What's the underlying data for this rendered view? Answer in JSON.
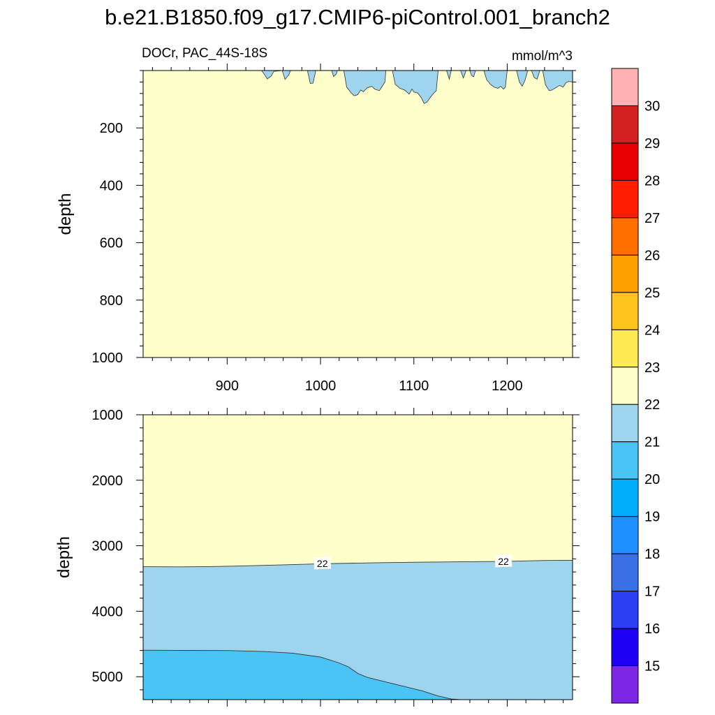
{
  "title": "b.e21.B1850.f09_g17.CMIP6-piControl.001_branch2",
  "subtitle_left": "DOCr, PAC_44S-18S",
  "subtitle_right": "mmol/m^3",
  "colors": {
    "below_15": "#7d26e6",
    "15": "#1e00f5",
    "16": "#2a3ff0",
    "17": "#3a6fe8",
    "18": "#1e90ff",
    "19": "#00b0ff",
    "20": "#4ac3f5",
    "21": "#9fd4ee",
    "22": "#ffffcc",
    "23": "#ffe955",
    "24": "#ffc41c",
    "25": "#ff9f00",
    "26": "#ff6f00",
    "27": "#ff1e00",
    "28": "#e60000",
    "29": "#d42020",
    "30": "#ffb0b0",
    "frame": "#000000"
  },
  "chart_data": [
    {
      "type": "contour-section",
      "panel": "upper",
      "ylabel": "depth",
      "xlim": [
        810,
        1270
      ],
      "ylim": [
        1000,
        0
      ],
      "y_reversed": true,
      "x_ticks": [
        900,
        1000,
        1100,
        1200
      ],
      "x_tick_labels": [
        "900",
        "1000",
        "1100",
        "1200"
      ],
      "y_ticks": [
        200,
        400,
        600,
        800,
        1000
      ],
      "y_tick_labels": [
        "200",
        "400",
        "600",
        "800",
        "1000"
      ],
      "background_level": "22-23",
      "regions": [
        {
          "level": "21-22",
          "description": "thin patches near surface",
          "boundary": [
            [
              937,
              0
            ],
            [
              940,
              14
            ],
            [
              943,
              29
            ],
            [
              947,
              20
            ],
            [
              950,
              3
            ],
            [
              959,
              0
            ],
            [
              962,
              31
            ],
            [
              966,
              15
            ],
            [
              968,
              0
            ],
            [
              986,
              0
            ],
            [
              989,
              45
            ],
            [
              992,
              44
            ],
            [
              995,
              0
            ],
            [
              1012,
              0
            ],
            [
              1014,
              21
            ],
            [
              1017,
              12
            ],
            [
              1018,
              0
            ],
            [
              1025,
              0
            ],
            [
              1028,
              58
            ],
            [
              1033,
              78
            ],
            [
              1036,
              88
            ],
            [
              1040,
              84
            ],
            [
              1043,
              68
            ],
            [
              1046,
              74
            ],
            [
              1050,
              60
            ],
            [
              1055,
              55
            ],
            [
              1058,
              65
            ],
            [
              1063,
              70
            ],
            [
              1066,
              55
            ],
            [
              1069,
              40
            ],
            [
              1070,
              0
            ],
            [
              1077,
              0
            ],
            [
              1080,
              48
            ],
            [
              1085,
              62
            ],
            [
              1090,
              68
            ],
            [
              1095,
              82
            ],
            [
              1098,
              65
            ],
            [
              1100,
              75
            ],
            [
              1104,
              78
            ],
            [
              1108,
              95
            ],
            [
              1111,
              115
            ],
            [
              1114,
              110
            ],
            [
              1118,
              92
            ],
            [
              1121,
              80
            ],
            [
              1124,
              70
            ],
            [
              1126,
              0
            ],
            [
              1135,
              0
            ],
            [
              1138,
              30
            ],
            [
              1140,
              0
            ],
            [
              1150,
              0
            ],
            [
              1153,
              26
            ],
            [
              1156,
              0
            ],
            [
              1160,
              0
            ],
            [
              1162,
              18
            ],
            [
              1164,
              22
            ],
            [
              1166,
              0
            ],
            [
              1175,
              0
            ],
            [
              1178,
              32
            ],
            [
              1182,
              48
            ],
            [
              1186,
              58
            ],
            [
              1190,
              62
            ],
            [
              1193,
              55
            ],
            [
              1196,
              65
            ],
            [
              1198,
              58
            ],
            [
              1200,
              0
            ],
            [
              1210,
              0
            ],
            [
              1213,
              40
            ],
            [
              1216,
              55
            ],
            [
              1219,
              35
            ],
            [
              1222,
              0
            ],
            [
              1226,
              0
            ],
            [
              1229,
              25
            ],
            [
              1232,
              30
            ],
            [
              1235,
              0
            ],
            [
              1238,
              0
            ],
            [
              1241,
              50
            ],
            [
              1245,
              70
            ],
            [
              1248,
              68
            ],
            [
              1252,
              60
            ],
            [
              1256,
              52
            ],
            [
              1260,
              58
            ],
            [
              1263,
              42
            ],
            [
              1266,
              38
            ],
            [
              1270,
              40
            ],
            [
              1270,
              0
            ]
          ]
        }
      ]
    },
    {
      "type": "contour-section",
      "panel": "lower",
      "ylabel": "depth",
      "xlim": [
        810,
        1270
      ],
      "ylim": [
        5350,
        1000
      ],
      "y_reversed": true,
      "y_ticks": [
        1000,
        2000,
        3000,
        4000,
        5000
      ],
      "y_tick_labels": [
        "1000",
        "2000",
        "3000",
        "4000",
        "5000"
      ],
      "x_ticks": [
        900,
        1000,
        1100,
        1200
      ],
      "x_tick_labels_shown": false,
      "background_level": "22-23",
      "contour_22": {
        "level": 22,
        "points": [
          [
            810,
            3320
          ],
          [
            850,
            3322
          ],
          [
            880,
            3318
          ],
          [
            910,
            3310
          ],
          [
            950,
            3295
          ],
          [
            1000,
            3275
          ],
          [
            1050,
            3262
          ],
          [
            1100,
            3252
          ],
          [
            1150,
            3245
          ],
          [
            1200,
            3238
          ],
          [
            1240,
            3225
          ],
          [
            1270,
            3222
          ]
        ],
        "inline_labels": [
          {
            "text": "22",
            "x": 1002,
            "y": 3270
          },
          {
            "text": "22",
            "x": 1196,
            "y": 3238
          }
        ]
      },
      "contour_21": {
        "level": 21,
        "points": [
          [
            810,
            4595
          ],
          [
            850,
            4598
          ],
          [
            900,
            4600
          ],
          [
            940,
            4615
          ],
          [
            970,
            4640
          ],
          [
            1000,
            4700
          ],
          [
            1020,
            4790
          ],
          [
            1030,
            4850
          ],
          [
            1040,
            4950
          ],
          [
            1050,
            5010
          ],
          [
            1070,
            5080
          ],
          [
            1090,
            5150
          ],
          [
            1110,
            5220
          ],
          [
            1125,
            5290
          ],
          [
            1140,
            5340
          ],
          [
            1150,
            5350
          ]
        ]
      },
      "level_regions": [
        {
          "level": "22-23",
          "where": "above contour 22"
        },
        {
          "level": "21-22",
          "where": "between contour 22 and contour 21"
        },
        {
          "level": "20-21",
          "where": "below contour 21"
        }
      ]
    }
  ],
  "colorbar": {
    "orientation": "vertical",
    "levels": [
      "15",
      "16",
      "17",
      "18",
      "19",
      "20",
      "21",
      "22",
      "23",
      "24",
      "25",
      "26",
      "27",
      "28",
      "29",
      "30"
    ],
    "boxes": [
      "below_15",
      "15",
      "16",
      "17",
      "18",
      "19",
      "20",
      "21",
      "22",
      "23",
      "24",
      "25",
      "26",
      "27",
      "28",
      "29",
      "30"
    ]
  }
}
